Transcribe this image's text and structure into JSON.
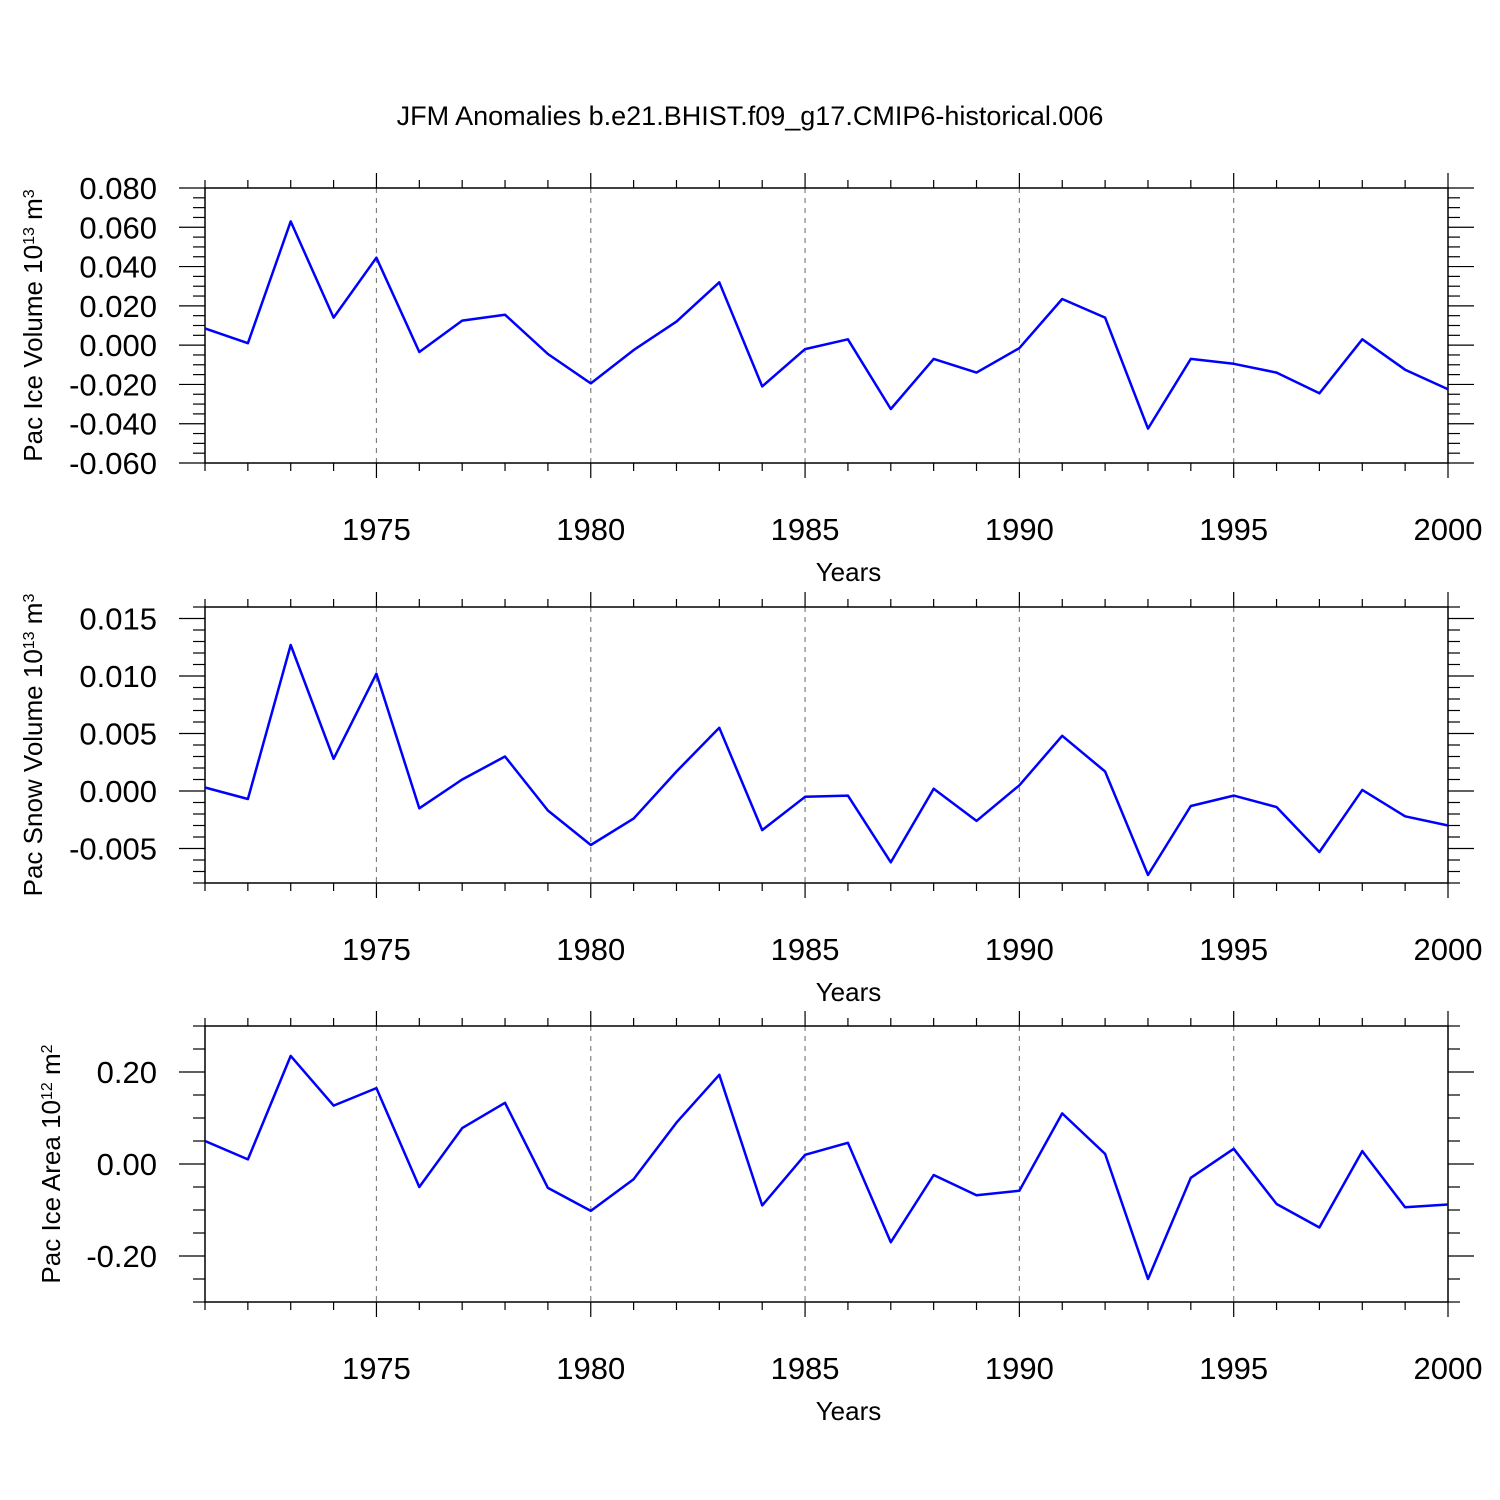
{
  "title": "JFM Anomalies b.e21.BHIST.f09_g17.CMIP6-historical.006",
  "colors": {
    "line": "#0000ff",
    "axis": "#000000",
    "grid": "#808080"
  },
  "chart_data": [
    {
      "type": "line",
      "xlabel": "Years",
      "ylabel": {
        "text": "Pac Ice Volume 10",
        "sup": "13",
        "unit": " m",
        "unit_sup": "3"
      },
      "xlim": [
        1971,
        2000
      ],
      "ylim": [
        -0.06,
        0.08
      ],
      "x_ticks": [
        1975,
        1980,
        1985,
        1990,
        1995,
        2000
      ],
      "y_ticks": [
        {
          "value": 0.08,
          "label": "0.080"
        },
        {
          "value": 0.06,
          "label": "0.060"
        },
        {
          "value": 0.04,
          "label": "0.040"
        },
        {
          "value": 0.02,
          "label": "0.020"
        },
        {
          "value": 0.0,
          "label": "0.000"
        },
        {
          "value": -0.02,
          "label": "-0.020"
        },
        {
          "value": -0.04,
          "label": "-0.040"
        },
        {
          "value": -0.06,
          "label": "-0.060"
        }
      ],
      "y_minor_step": 0.005,
      "vertical_grid": "dashed at major x ticks",
      "x": [
        1971,
        1972,
        1973,
        1974,
        1975,
        1976,
        1977,
        1978,
        1979,
        1980,
        1981,
        1982,
        1983,
        1984,
        1985,
        1986,
        1987,
        1988,
        1989,
        1990,
        1991,
        1992,
        1993,
        1994,
        1995,
        1996,
        1997,
        1998,
        1999,
        2000
      ],
      "series": [
        {
          "values": [
            0.0085,
            0.001,
            0.063,
            0.014,
            0.0445,
            -0.0035,
            0.0125,
            0.0155,
            -0.0045,
            -0.0195,
            -0.0025,
            0.012,
            0.032,
            -0.021,
            -0.002,
            0.003,
            -0.0325,
            -0.007,
            -0.014,
            -0.0015,
            0.0235,
            0.014,
            -0.0425,
            -0.007,
            -0.0095,
            -0.014,
            -0.0245,
            0.003,
            -0.0125,
            -0.0225
          ]
        }
      ]
    },
    {
      "type": "line",
      "xlabel": "Years",
      "ylabel": {
        "text": "Pac Snow Volume 10",
        "sup": "13",
        "unit": " m",
        "unit_sup": "3"
      },
      "xlim": [
        1971,
        2000
      ],
      "ylim": [
        -0.008,
        0.016
      ],
      "x_ticks": [
        1975,
        1980,
        1985,
        1990,
        1995,
        2000
      ],
      "y_ticks": [
        {
          "value": 0.015,
          "label": "0.015"
        },
        {
          "value": 0.01,
          "label": "0.010"
        },
        {
          "value": 0.005,
          "label": "0.005"
        },
        {
          "value": 0.0,
          "label": "0.000"
        },
        {
          "value": -0.005,
          "label": "-0.005"
        }
      ],
      "y_minor_step": 0.001,
      "vertical_grid": "dashed at major x ticks",
      "x": [
        1971,
        1972,
        1973,
        1974,
        1975,
        1976,
        1977,
        1978,
        1979,
        1980,
        1981,
        1982,
        1983,
        1984,
        1985,
        1986,
        1987,
        1988,
        1989,
        1990,
        1991,
        1992,
        1993,
        1994,
        1995,
        1996,
        1997,
        1998,
        1999,
        2000
      ],
      "series": [
        {
          "values": [
            0.0003,
            -0.0007,
            0.0127,
            0.0028,
            0.0102,
            -0.0015,
            0.001,
            0.003,
            -0.0017,
            -0.0047,
            -0.0024,
            0.0017,
            0.0055,
            -0.0034,
            -0.0005,
            -0.0004,
            -0.0062,
            0.0002,
            -0.0026,
            0.0005,
            0.0048,
            0.0017,
            -0.0073,
            -0.0013,
            -0.0004,
            -0.0014,
            -0.0053,
            0.0001,
            -0.0022,
            -0.003
          ]
        }
      ]
    },
    {
      "type": "line",
      "xlabel": "Years",
      "ylabel": {
        "text": "Pac Ice Area 10",
        "sup": "12",
        "unit": " m",
        "unit_sup": "2"
      },
      "xlim": [
        1971,
        2000
      ],
      "ylim": [
        -0.3,
        0.3
      ],
      "x_ticks": [
        1975,
        1980,
        1985,
        1990,
        1995,
        2000
      ],
      "y_ticks": [
        {
          "value": 0.2,
          "label": "0.20"
        },
        {
          "value": 0.0,
          "label": "0.00"
        },
        {
          "value": -0.2,
          "label": "-0.20"
        }
      ],
      "y_minor_step": 0.05,
      "vertical_grid": "dashed at major x ticks",
      "x": [
        1971,
        1972,
        1973,
        1974,
        1975,
        1976,
        1977,
        1978,
        1979,
        1980,
        1981,
        1982,
        1983,
        1984,
        1985,
        1986,
        1987,
        1988,
        1989,
        1990,
        1991,
        1992,
        1993,
        1994,
        1995,
        1996,
        1997,
        1998,
        1999,
        2000
      ],
      "series": [
        {
          "values": [
            0.05,
            0.01,
            0.235,
            0.127,
            0.165,
            -0.05,
            0.078,
            0.133,
            -0.052,
            -0.102,
            -0.033,
            0.09,
            0.194,
            -0.09,
            0.02,
            0.046,
            -0.17,
            -0.024,
            -0.068,
            -0.058,
            0.11,
            0.022,
            -0.25,
            -0.03,
            0.033,
            -0.087,
            -0.138,
            0.028,
            -0.094,
            -0.088
          ]
        }
      ]
    }
  ]
}
